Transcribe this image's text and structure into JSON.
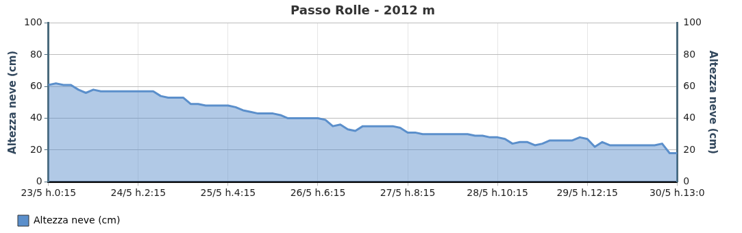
{
  "chart_data": {
    "type": "area",
    "title": "Passo Rolle - 2012 m",
    "ylabel": "Altezza neve (cm)",
    "y2label": "Altezza neve (cm)",
    "categories": [
      "23/5 h.0:15",
      null,
      null,
      null,
      null,
      null,
      null,
      null,
      null,
      null,
      null,
      null,
      "24/5 h.2:15",
      null,
      null,
      null,
      null,
      null,
      null,
      null,
      null,
      null,
      null,
      null,
      "25/5 h.4:15",
      null,
      null,
      null,
      null,
      null,
      null,
      null,
      null,
      null,
      null,
      null,
      "26/5 h.6:15",
      null,
      null,
      null,
      null,
      null,
      null,
      null,
      null,
      null,
      null,
      null,
      "27/5 h.8:15",
      null,
      null,
      null,
      null,
      null,
      null,
      null,
      null,
      null,
      null,
      null,
      "28/5 h.10:15",
      null,
      null,
      null,
      null,
      null,
      null,
      null,
      null,
      null,
      null,
      null,
      "29/5 h.12:15",
      null,
      null,
      null,
      null,
      null,
      null,
      null,
      null,
      null,
      null,
      null,
      "30/5 h.13:0"
    ],
    "series": [
      {
        "name": "Altezza neve (cm)",
        "color": "#5b8fcb",
        "values": [
          61,
          62,
          61,
          61,
          58,
          56,
          58,
          57,
          57,
          57,
          57,
          57,
          57,
          57,
          57,
          54,
          53,
          53,
          53,
          49,
          49,
          48,
          48,
          48,
          48,
          47,
          45,
          44,
          43,
          43,
          43,
          42,
          40,
          40,
          40,
          40,
          40,
          39,
          35,
          36,
          33,
          32,
          35,
          35,
          35,
          35,
          35,
          34,
          31,
          31,
          30,
          30,
          30,
          30,
          30,
          30,
          30,
          29,
          29,
          28,
          28,
          27,
          24,
          25,
          25,
          23,
          24,
          26,
          26,
          26,
          26,
          28,
          27,
          22,
          25,
          23,
          23,
          23,
          23,
          23,
          23,
          23,
          24,
          18,
          18
        ]
      }
    ],
    "ylim": [
      0,
      100
    ],
    "yticks": [
      0,
      20,
      40,
      60,
      80,
      100
    ],
    "y2lim": [
      0,
      100
    ],
    "y2ticks": [
      0,
      20,
      40,
      60,
      80,
      100
    ],
    "grid": true,
    "legend": "bottom left"
  }
}
